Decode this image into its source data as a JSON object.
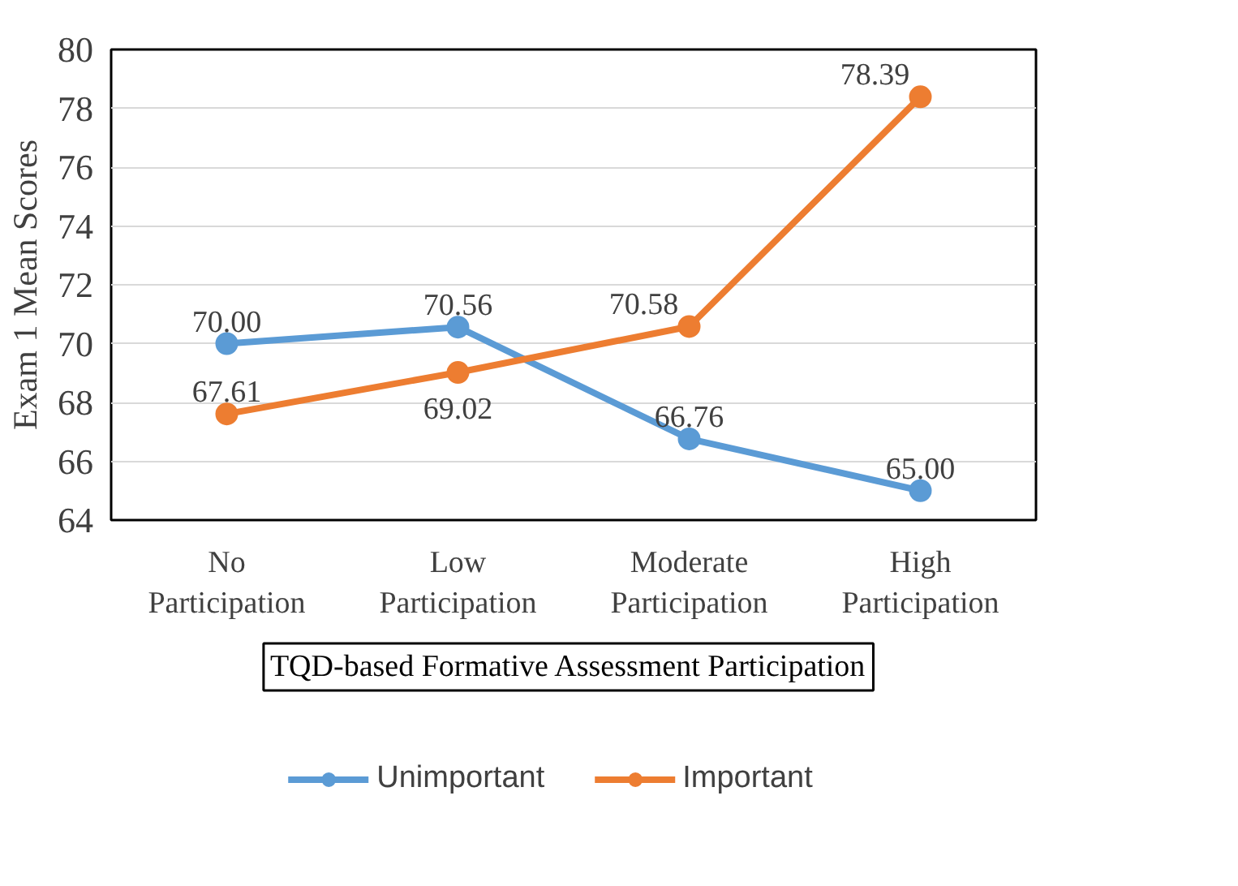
{
  "chart_data": {
    "type": "line",
    "xlabel": "TQD-based Formative Assessment Participation",
    "ylabel": "Exam 1 Mean Scores",
    "categories": [
      "No Participation",
      "Low Participation",
      "Moderate Participation",
      "High Participation"
    ],
    "series": [
      {
        "name": "Unimportant",
        "color": "#5b9bd5",
        "values": [
          70.0,
          70.56,
          66.76,
          65.0
        ],
        "value_labels": [
          "70.00",
          "70.56",
          "66.76",
          "65.00"
        ]
      },
      {
        "name": "Important",
        "color": "#ed7d31",
        "values": [
          67.61,
          69.02,
          70.58,
          78.39
        ],
        "value_labels": [
          "67.61",
          "69.02",
          "70.58",
          "78.39"
        ]
      }
    ],
    "ylim": [
      64,
      80
    ],
    "yticks": [
      64,
      66,
      68,
      70,
      72,
      74,
      76,
      78,
      80
    ],
    "grid": "y",
    "legend": "bottom",
    "marker": "circle"
  }
}
